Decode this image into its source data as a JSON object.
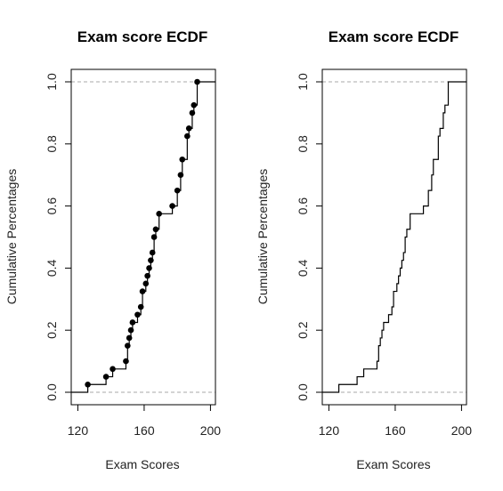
{
  "chart_data": [
    {
      "type": "ecdf",
      "title": "Exam score ECDF",
      "xlabel": "Exam Scores",
      "ylabel": "Cumulative Percentages",
      "show_points": true,
      "xlim": [
        116,
        203
      ],
      "ylim": [
        0,
        1
      ],
      "xticks": [
        120,
        160,
        200
      ],
      "xtick_labels": [
        "120",
        "160",
        "200"
      ],
      "yticks": [
        0.0,
        0.2,
        0.4,
        0.6,
        0.8,
        1.0
      ],
      "ytick_labels": [
        "0.0",
        "0.2",
        "0.4",
        "0.6",
        "0.8",
        "1.0"
      ],
      "reference_lines": [
        0,
        1
      ],
      "points": [
        {
          "x": 126,
          "y": 0.025
        },
        {
          "x": 137,
          "y": 0.05
        },
        {
          "x": 141,
          "y": 0.075
        },
        {
          "x": 149,
          "y": 0.1
        },
        {
          "x": 150,
          "y": 0.15
        },
        {
          "x": 151,
          "y": 0.175
        },
        {
          "x": 152,
          "y": 0.2
        },
        {
          "x": 153,
          "y": 0.225
        },
        {
          "x": 156,
          "y": 0.25
        },
        {
          "x": 158,
          "y": 0.275
        },
        {
          "x": 159,
          "y": 0.325
        },
        {
          "x": 161,
          "y": 0.35
        },
        {
          "x": 162,
          "y": 0.375
        },
        {
          "x": 163,
          "y": 0.4
        },
        {
          "x": 164,
          "y": 0.425
        },
        {
          "x": 165,
          "y": 0.45
        },
        {
          "x": 166,
          "y": 0.5
        },
        {
          "x": 167,
          "y": 0.525
        },
        {
          "x": 169,
          "y": 0.575
        },
        {
          "x": 177,
          "y": 0.6
        },
        {
          "x": 180,
          "y": 0.65
        },
        {
          "x": 182,
          "y": 0.7
        },
        {
          "x": 183,
          "y": 0.75
        },
        {
          "x": 186,
          "y": 0.825
        },
        {
          "x": 187,
          "y": 0.85
        },
        {
          "x": 189,
          "y": 0.9
        },
        {
          "x": 190,
          "y": 0.925
        },
        {
          "x": 192,
          "y": 1.0
        }
      ]
    },
    {
      "type": "ecdf",
      "title": "Exam score ECDF",
      "xlabel": "Exam Scores",
      "ylabel": "Cumulative Percentages",
      "show_points": false,
      "xlim": [
        116,
        203
      ],
      "ylim": [
        0,
        1
      ],
      "xticks": [
        120,
        160,
        200
      ],
      "xtick_labels": [
        "120",
        "160",
        "200"
      ],
      "yticks": [
        0.0,
        0.2,
        0.4,
        0.6,
        0.8,
        1.0
      ],
      "ytick_labels": [
        "0.0",
        "0.2",
        "0.4",
        "0.6",
        "0.8",
        "1.0"
      ],
      "reference_lines": [
        0,
        1
      ],
      "points": [
        {
          "x": 126,
          "y": 0.025
        },
        {
          "x": 137,
          "y": 0.05
        },
        {
          "x": 141,
          "y": 0.075
        },
        {
          "x": 149,
          "y": 0.1
        },
        {
          "x": 150,
          "y": 0.15
        },
        {
          "x": 151,
          "y": 0.175
        },
        {
          "x": 152,
          "y": 0.2
        },
        {
          "x": 153,
          "y": 0.225
        },
        {
          "x": 156,
          "y": 0.25
        },
        {
          "x": 158,
          "y": 0.275
        },
        {
          "x": 159,
          "y": 0.325
        },
        {
          "x": 161,
          "y": 0.35
        },
        {
          "x": 162,
          "y": 0.375
        },
        {
          "x": 163,
          "y": 0.4
        },
        {
          "x": 164,
          "y": 0.425
        },
        {
          "x": 165,
          "y": 0.45
        },
        {
          "x": 166,
          "y": 0.5
        },
        {
          "x": 167,
          "y": 0.525
        },
        {
          "x": 169,
          "y": 0.575
        },
        {
          "x": 177,
          "y": 0.6
        },
        {
          "x": 180,
          "y": 0.65
        },
        {
          "x": 182,
          "y": 0.7
        },
        {
          "x": 183,
          "y": 0.75
        },
        {
          "x": 186,
          "y": 0.825
        },
        {
          "x": 187,
          "y": 0.85
        },
        {
          "x": 189,
          "y": 0.9
        },
        {
          "x": 190,
          "y": 0.925
        },
        {
          "x": 192,
          "y": 1.0
        }
      ]
    }
  ]
}
